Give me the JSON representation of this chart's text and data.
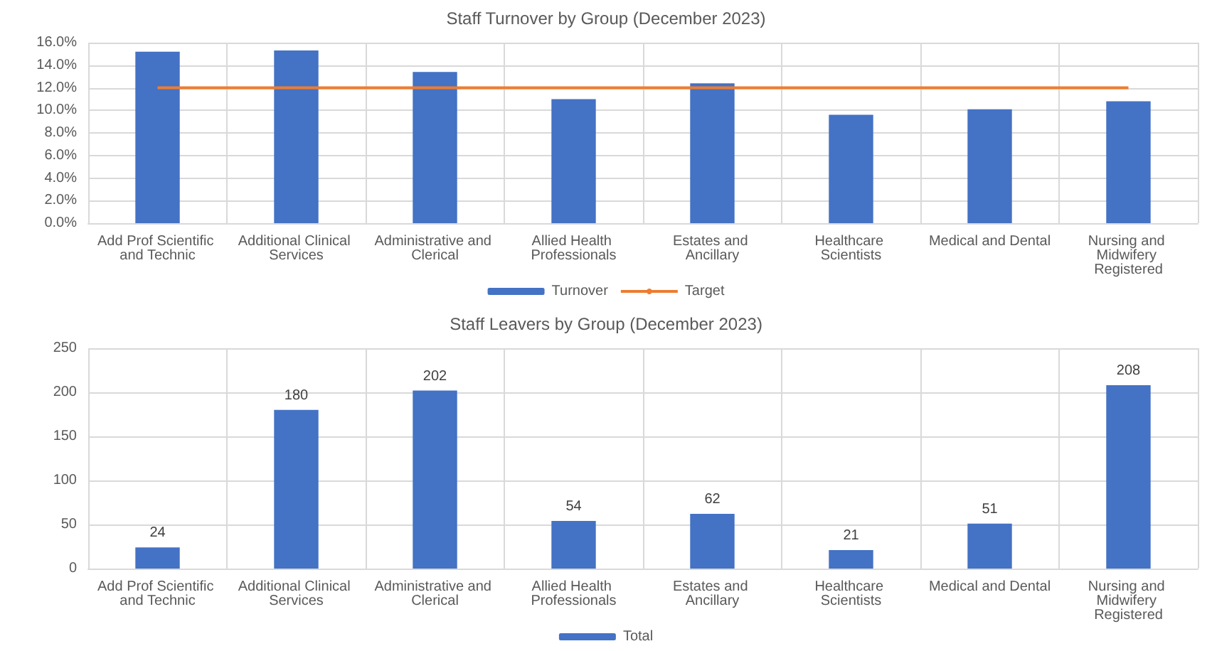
{
  "chart_data": [
    {
      "type": "bar",
      "title": "Staff Turnover by Group (December 2023)",
      "categories": [
        "Add Prof Scientific and Technic",
        "Additional Clinical Services",
        "Administrative and Clerical",
        "Allied Health Professionals",
        "Estates and Ancillary",
        "Healthcare Scientists",
        "Medical and Dental",
        "Nursing and Midwifery Registered"
      ],
      "series": [
        {
          "name": "Turnover",
          "color": "#4472c4",
          "values": [
            15.2,
            15.3,
            13.4,
            11.0,
            12.4,
            9.6,
            10.1,
            10.8
          ]
        },
        {
          "name": "Target",
          "type": "line",
          "color": "#ed7d31",
          "values": [
            12,
            12,
            12,
            12,
            12,
            12,
            12,
            12
          ]
        }
      ],
      "ylim": [
        0,
        16
      ],
      "yticks": [
        {
          "value": 0,
          "label": "0.0%"
        },
        {
          "value": 2,
          "label": "2.0%"
        },
        {
          "value": 4,
          "label": "4.0%"
        },
        {
          "value": 6,
          "label": "6.0%"
        },
        {
          "value": 8,
          "label": "8.0%"
        },
        {
          "value": 10,
          "label": "10.0%"
        },
        {
          "value": 12,
          "label": "12.0%"
        },
        {
          "value": 14,
          "label": "14.0%"
        },
        {
          "value": 16,
          "label": "16.0%"
        }
      ],
      "grid": true,
      "legend": "bottom",
      "marker": "none"
    },
    {
      "type": "bar",
      "title": "Staff Leavers by Group (December 2023)",
      "categories": [
        "Add Prof Scientific and Technic",
        "Additional Clinical Services",
        "Administrative and Clerical",
        "Allied Health Professionals",
        "Estates and Ancillary",
        "Healthcare Scientists",
        "Medical and Dental",
        "Nursing and Midwifery Registered"
      ],
      "series": [
        {
          "name": "Total",
          "color": "#4472c4",
          "values": [
            24,
            180,
            202,
            54,
            62,
            21,
            51,
            208
          ]
        }
      ],
      "ylim": [
        0,
        250
      ],
      "yticks": [
        0,
        50,
        100,
        150,
        200,
        250
      ],
      "grid": true,
      "legend": "bottom",
      "data_labels": true
    }
  ]
}
